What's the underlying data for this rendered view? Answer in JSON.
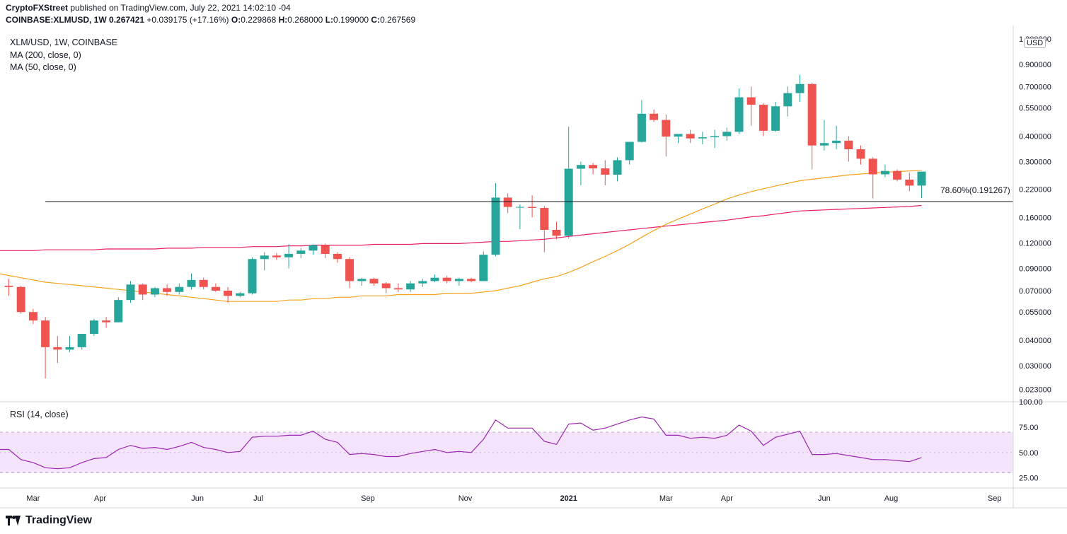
{
  "header": {
    "publisher": "CryptoFXStreet",
    "published_text": "published on TradingView.com, July 22, 2021 14:02:10 -04",
    "symbol_full": "COINBASE:XLMUSD, 1W",
    "last": "0.267421",
    "change": "+0.039175 (+17.16%)",
    "o_label": "O:",
    "o_value": "0.229868",
    "h_label": "H:",
    "h_value": "0.268000",
    "l_label": "L:",
    "l_value": "0.199000",
    "c_label": "C:",
    "c_value": "0.267569"
  },
  "legend": {
    "title": "XLM/USD, 1W, COINBASE",
    "ma200": "MA (200, close, 0)",
    "ma50": "MA (50, close, 0)"
  },
  "fib_label": "78.60%(0.191267)",
  "rsi_label": "RSI (14, close)",
  "currency": "USD",
  "footer": {
    "brand": "TradingView"
  },
  "colors": {
    "up": "#26a69a",
    "down": "#ef5350",
    "ma50": "#f7a21b",
    "ma200": "#e91e63",
    "rsi": "#9c27b0",
    "rsi_band": "#f3e3fb",
    "grid": "#e0e3eb"
  },
  "chart_data": [
    {
      "type": "candlestick",
      "title": "XLM/USD, 1W, COINBASE",
      "yscale": "log",
      "ylim": [
        0.02,
        1.35
      ],
      "y_ticks": [
        "1.200000",
        "0.900000",
        "0.700000",
        "0.550000",
        "0.400000",
        "0.300000",
        "0.220000",
        "0.160000",
        "0.120000",
        "0.090000",
        "0.070000",
        "0.055000",
        "0.040000",
        "0.030000",
        "0.023000"
      ],
      "x_tick_labels": [
        "Mar",
        "Apr",
        "Jun",
        "Jul",
        "Sep",
        "Nov",
        "2021",
        "Mar",
        "Apr",
        "Jun",
        "Aug",
        "Sep"
      ],
      "x_tick_weeks": [
        2,
        7.5,
        15.5,
        20.5,
        29.5,
        37.5,
        46,
        54,
        59,
        67,
        72.5,
        81
      ],
      "ohlc": [
        [
          0.074,
          0.08,
          0.066,
          0.073
        ],
        [
          0.073,
          0.074,
          0.054,
          0.055
        ],
        [
          0.055,
          0.057,
          0.048,
          0.05
        ],
        [
          0.05,
          0.052,
          0.026,
          0.037
        ],
        [
          0.037,
          0.042,
          0.031,
          0.036
        ],
        [
          0.036,
          0.042,
          0.035,
          0.037
        ],
        [
          0.037,
          0.043,
          0.036,
          0.043
        ],
        [
          0.043,
          0.051,
          0.042,
          0.05
        ],
        [
          0.05,
          0.052,
          0.046,
          0.049
        ],
        [
          0.049,
          0.065,
          0.049,
          0.063
        ],
        [
          0.063,
          0.078,
          0.061,
          0.075
        ],
        [
          0.075,
          0.076,
          0.063,
          0.067
        ],
        [
          0.067,
          0.073,
          0.065,
          0.072
        ],
        [
          0.072,
          0.075,
          0.066,
          0.069
        ],
        [
          0.069,
          0.076,
          0.067,
          0.073
        ],
        [
          0.073,
          0.085,
          0.071,
          0.079
        ],
        [
          0.079,
          0.081,
          0.071,
          0.073
        ],
        [
          0.073,
          0.076,
          0.069,
          0.07
        ],
        [
          0.07,
          0.073,
          0.061,
          0.066
        ],
        [
          0.066,
          0.069,
          0.065,
          0.068
        ],
        [
          0.068,
          0.102,
          0.067,
          0.1
        ],
        [
          0.1,
          0.108,
          0.088,
          0.104
        ],
        [
          0.104,
          0.107,
          0.099,
          0.102
        ],
        [
          0.102,
          0.118,
          0.09,
          0.106
        ],
        [
          0.106,
          0.113,
          0.101,
          0.11
        ],
        [
          0.11,
          0.118,
          0.105,
          0.117
        ],
        [
          0.117,
          0.119,
          0.101,
          0.106
        ],
        [
          0.106,
          0.108,
          0.096,
          0.1
        ],
        [
          0.1,
          0.102,
          0.072,
          0.078
        ],
        [
          0.078,
          0.081,
          0.074,
          0.08
        ],
        [
          0.08,
          0.081,
          0.074,
          0.076
        ],
        [
          0.076,
          0.077,
          0.068,
          0.072
        ],
        [
          0.072,
          0.076,
          0.069,
          0.071
        ],
        [
          0.071,
          0.078,
          0.069,
          0.076
        ],
        [
          0.076,
          0.08,
          0.073,
          0.078
        ],
        [
          0.078,
          0.084,
          0.077,
          0.081
        ],
        [
          0.081,
          0.083,
          0.076,
          0.078
        ],
        [
          0.078,
          0.081,
          0.074,
          0.08
        ],
        [
          0.08,
          0.081,
          0.077,
          0.078
        ],
        [
          0.078,
          0.109,
          0.078,
          0.105
        ],
        [
          0.105,
          0.235,
          0.103,
          0.2
        ],
        [
          0.2,
          0.21,
          0.168,
          0.18
        ],
        [
          0.18,
          0.185,
          0.14,
          0.18
        ],
        [
          0.18,
          0.205,
          0.16,
          0.178
        ],
        [
          0.178,
          0.182,
          0.108,
          0.139
        ],
        [
          0.139,
          0.152,
          0.125,
          0.13
        ],
        [
          0.13,
          0.445,
          0.126,
          0.277
        ],
        [
          0.277,
          0.3,
          0.23,
          0.289
        ],
        [
          0.289,
          0.295,
          0.26,
          0.278
        ],
        [
          0.278,
          0.305,
          0.23,
          0.259
        ],
        [
          0.259,
          0.315,
          0.24,
          0.305
        ],
        [
          0.305,
          0.37,
          0.29,
          0.375
        ],
        [
          0.375,
          0.6,
          0.372,
          0.515
        ],
        [
          0.515,
          0.54,
          0.47,
          0.48
        ],
        [
          0.48,
          0.51,
          0.318,
          0.398
        ],
        [
          0.398,
          0.405,
          0.37,
          0.41
        ],
        [
          0.41,
          0.43,
          0.37,
          0.39
        ],
        [
          0.39,
          0.42,
          0.365,
          0.395
        ],
        [
          0.395,
          0.43,
          0.35,
          0.4
        ],
        [
          0.4,
          0.44,
          0.38,
          0.42
        ],
        [
          0.42,
          0.685,
          0.41,
          0.62
        ],
        [
          0.62,
          0.7,
          0.45,
          0.57
        ],
        [
          0.57,
          0.58,
          0.4,
          0.425
        ],
        [
          0.425,
          0.59,
          0.42,
          0.56
        ],
        [
          0.56,
          0.7,
          0.5,
          0.65
        ],
        [
          0.65,
          0.8,
          0.59,
          0.72
        ],
        [
          0.72,
          0.73,
          0.275,
          0.36
        ],
        [
          0.36,
          0.48,
          0.34,
          0.37
        ],
        [
          0.37,
          0.45,
          0.345,
          0.38
        ],
        [
          0.38,
          0.4,
          0.3,
          0.345
        ],
        [
          0.345,
          0.36,
          0.29,
          0.31
        ],
        [
          0.31,
          0.315,
          0.198,
          0.26
        ],
        [
          0.26,
          0.29,
          0.252,
          0.27
        ],
        [
          0.27,
          0.275,
          0.24,
          0.245
        ],
        [
          0.245,
          0.265,
          0.215,
          0.229
        ],
        [
          0.229,
          0.268,
          0.199,
          0.268
        ]
      ],
      "ma50": [
        0.083,
        0.081,
        0.079,
        0.077,
        0.076,
        0.075,
        0.074,
        0.073,
        0.072,
        0.071,
        0.07,
        0.069,
        0.068,
        0.067,
        0.066,
        0.065,
        0.064,
        0.063,
        0.062,
        0.062,
        0.062,
        0.062,
        0.062,
        0.063,
        0.063,
        0.064,
        0.064,
        0.065,
        0.065,
        0.066,
        0.066,
        0.066,
        0.067,
        0.067,
        0.067,
        0.067,
        0.068,
        0.068,
        0.068,
        0.069,
        0.07,
        0.072,
        0.074,
        0.077,
        0.08,
        0.082,
        0.086,
        0.091,
        0.097,
        0.103,
        0.11,
        0.118,
        0.128,
        0.138,
        0.148,
        0.157,
        0.166,
        0.176,
        0.186,
        0.197,
        0.206,
        0.214,
        0.221,
        0.228,
        0.235,
        0.242,
        0.246,
        0.25,
        0.254,
        0.258,
        0.261,
        0.264,
        0.266,
        0.268,
        0.27,
        0.272
      ],
      "ma200": [
        0.11,
        0.11,
        0.11,
        0.111,
        0.111,
        0.111,
        0.111,
        0.111,
        0.112,
        0.112,
        0.112,
        0.112,
        0.112,
        0.113,
        0.113,
        0.113,
        0.114,
        0.114,
        0.114,
        0.114,
        0.115,
        0.115,
        0.115,
        0.116,
        0.116,
        0.117,
        0.117,
        0.117,
        0.117,
        0.117,
        0.118,
        0.118,
        0.118,
        0.118,
        0.119,
        0.119,
        0.119,
        0.119,
        0.12,
        0.121,
        0.122,
        0.122,
        0.123,
        0.124,
        0.125,
        0.127,
        0.129,
        0.131,
        0.133,
        0.135,
        0.137,
        0.139,
        0.141,
        0.143,
        0.145,
        0.147,
        0.149,
        0.151,
        0.153,
        0.155,
        0.158,
        0.161,
        0.163,
        0.166,
        0.169,
        0.172,
        0.173,
        0.174,
        0.175,
        0.176,
        0.177,
        0.178,
        0.179,
        0.18,
        0.181,
        0.183
      ],
      "fib_level": 0.191267,
      "fib_start_week": 3
    },
    {
      "type": "line",
      "title": "RSI (14, close)",
      "ylim": [
        15,
        100
      ],
      "y_ticks": [
        100,
        75,
        50,
        25
      ],
      "band": [
        30,
        70
      ],
      "midline": 50,
      "values": [
        53,
        43,
        40,
        35,
        34,
        35,
        40,
        44,
        45,
        53,
        57,
        54,
        55,
        53,
        56,
        60,
        55,
        53,
        50,
        51,
        65,
        66,
        66,
        67,
        67,
        71,
        63,
        60,
        48,
        49,
        48,
        46,
        46,
        49,
        51,
        53,
        50,
        51,
        50,
        63,
        82,
        74,
        74,
        74,
        61,
        58,
        78,
        79,
        72,
        74,
        78,
        82,
        85,
        83,
        67,
        67,
        64,
        65,
        64,
        67,
        77,
        71,
        57,
        65,
        68,
        71,
        48,
        48,
        49,
        47,
        45,
        43,
        43,
        42,
        41,
        45
      ]
    }
  ]
}
